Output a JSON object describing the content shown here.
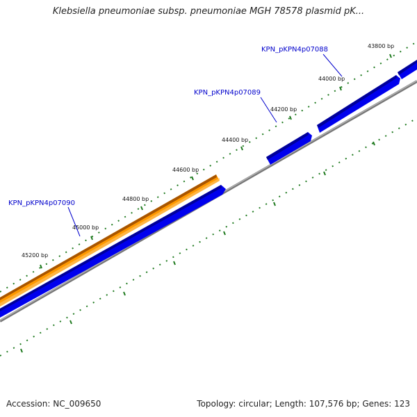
{
  "title": "Klebsiella pneumoniae subsp. pneumoniae MGH 78578 plasmid pK...",
  "footer": {
    "accession": "Accession: NC_009650",
    "summary": "Topology: circular; Length: 107,576 bp; Genes: 123"
  },
  "ticks": [
    {
      "label": "43800 bp"
    },
    {
      "label": "44000 bp"
    },
    {
      "label": "44200 bp"
    },
    {
      "label": "44400 bp"
    },
    {
      "label": "44600 bp"
    },
    {
      "label": "44800 bp"
    },
    {
      "label": "45000 bp"
    },
    {
      "label": "45200 bp"
    }
  ],
  "genes": [
    {
      "label": "KPN_pKPN4p07088"
    },
    {
      "label": "KPN_pKPN4p07089"
    },
    {
      "label": "KPN_pKPN4p07090"
    }
  ],
  "colors": {
    "forward_gene": "#0000ee",
    "forward_gene_edge": "#000099",
    "orange_feature": "#ff9900",
    "orange_feature_edge": "#b35c00",
    "backbone": "#888888",
    "tick": "#1f7a1f",
    "gene_label": "#0000cc"
  }
}
